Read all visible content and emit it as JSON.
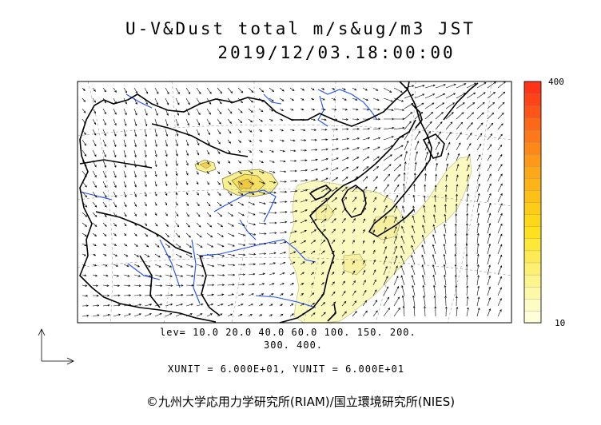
{
  "title": {
    "line1": "U-V&Dust total m/s&ug/m3 JST",
    "line2": "2019/12/03.18:00:00"
  },
  "colorbar": {
    "max_label": "400",
    "min_label": "10",
    "colors": [
      "#fefed8",
      "#fdfcc4",
      "#fdf8a8",
      "#fdf48c",
      "#fdef70",
      "#fdea54",
      "#fde838",
      "#fde020",
      "#fdd818",
      "#fdcc18",
      "#fdc018",
      "#fdb418",
      "#fda818",
      "#fd9818",
      "#fd8818",
      "#fd7818",
      "#fd6818",
      "#fd5418",
      "#fd4418",
      "#fd3418"
    ]
  },
  "legend": {
    "levels_line1": "lev= 10.0 20.0 40.0 60.0 100. 150. 200.",
    "levels_line2": "300. 400.",
    "units": "XUNIT = 6.000E+01, YUNIT = 6.000E+01"
  },
  "credit": "©九州大学応用力学研究所(RIAM)/国立環境研究所(NIES)",
  "colors": {
    "dust_fill": "#fafac0",
    "dust_contour": "#807850",
    "coast": "#000000",
    "rivers": "#1a4cff",
    "grid": "#999999"
  }
}
